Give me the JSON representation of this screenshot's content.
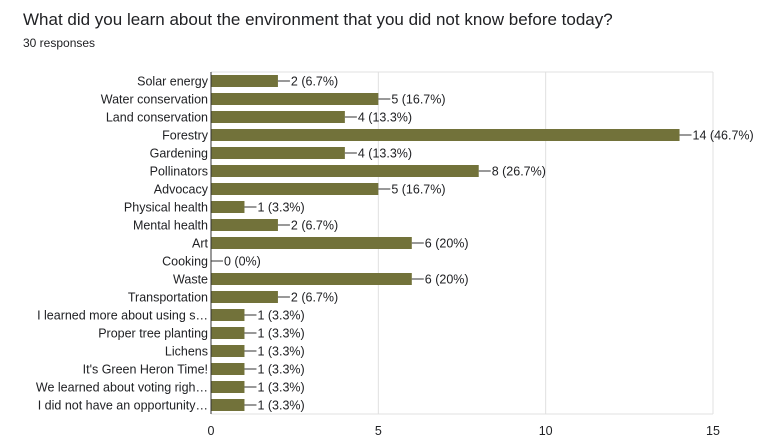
{
  "question": {
    "title": "What did you learn about the environment that you did not know before today?",
    "responses": "30 responses"
  },
  "colors": {
    "bar": "#72723a",
    "grid": "#e0e0e0",
    "axis": "#333333",
    "text": "#202124"
  },
  "chart_data": {
    "type": "bar",
    "orientation": "horizontal",
    "categories": [
      "Solar energy",
      "Water conservation",
      "Land conservation",
      "Forestry",
      "Gardening",
      "Pollinators",
      "Advocacy",
      "Physical health",
      "Mental health",
      "Art",
      "Cooking",
      "Waste",
      "Transportation",
      "I learned more about using s…",
      "Proper tree planting",
      "Lichens",
      "It's Green Heron Time!",
      "We learned about voting righ…",
      "I did not have an opportunity…"
    ],
    "values": [
      2,
      5,
      4,
      14,
      4,
      8,
      5,
      1,
      2,
      6,
      0,
      6,
      2,
      1,
      1,
      1,
      1,
      1,
      1
    ],
    "value_labels": [
      "2 (6.7%)",
      "5 (16.7%)",
      "4 (13.3%)",
      "14 (46.7%)",
      "4 (13.3%)",
      "8 (26.7%)",
      "5 (16.7%)",
      "1 (3.3%)",
      "2 (6.7%)",
      "6 (20%)",
      "0 (0%)",
      "6 (20%)",
      "2 (6.7%)",
      "1 (3.3%)",
      "1 (3.3%)",
      "1 (3.3%)",
      "1 (3.3%)",
      "1 (3.3%)",
      "1 (3.3%)"
    ],
    "xlim": [
      0,
      15
    ],
    "xticks": [
      0,
      5,
      10,
      15
    ],
    "xtick_labels": [
      "0",
      "5",
      "10",
      "15"
    ],
    "grid": true,
    "legend": "none"
  }
}
